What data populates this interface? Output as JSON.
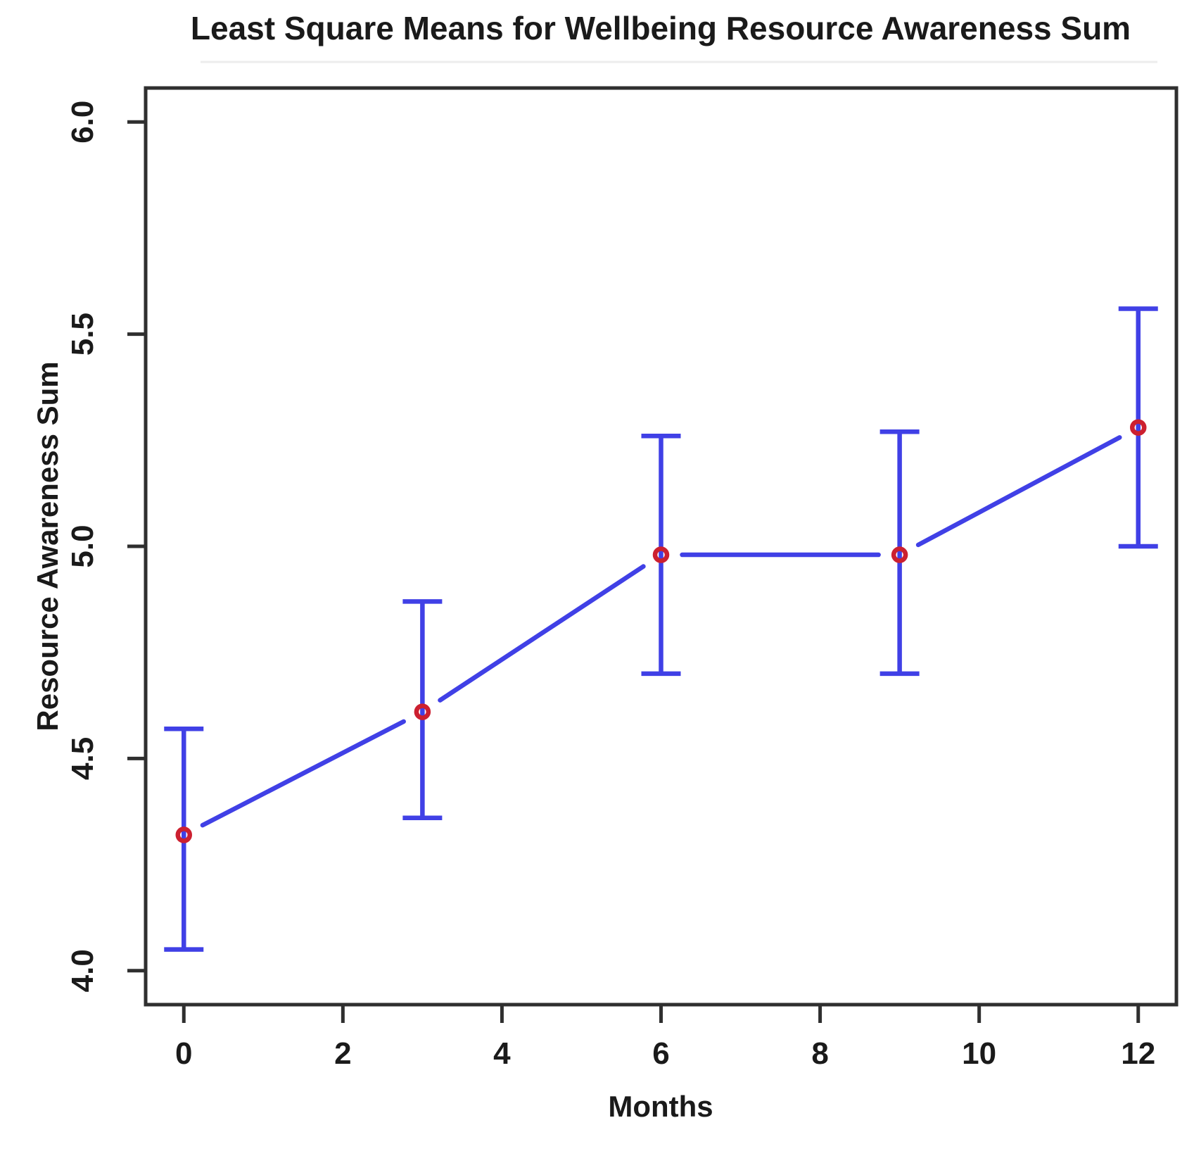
{
  "chart_data": {
    "type": "line",
    "title": "Least Square Means for Wellbeing Resource Awareness Sum",
    "xlabel": "Months",
    "ylabel": "Resource Awareness Sum",
    "x": [
      0,
      3,
      6,
      9,
      12
    ],
    "series": [
      {
        "name": "Least Square Mean",
        "values": [
          4.32,
          4.61,
          4.98,
          4.98,
          5.28
        ]
      }
    ],
    "error_low": [
      4.05,
      4.36,
      4.7,
      4.7,
      5.0
    ],
    "error_high": [
      4.57,
      4.87,
      5.26,
      5.27,
      5.56
    ],
    "xticks": [
      0,
      2,
      4,
      6,
      8,
      10,
      12
    ],
    "yticks": [
      4.0,
      4.5,
      5.0,
      5.5,
      6.0
    ],
    "xlim": [
      -0.48,
      12.48
    ],
    "ylim": [
      3.92,
      6.08
    ],
    "grid": false,
    "legend": "none",
    "marker": "open-circle",
    "colors": {
      "line": "#4040E6",
      "marker": "#CC2030",
      "axis": "#2F2F2F",
      "text": "#1A1A1A",
      "title_underline": "#ECECEC"
    }
  }
}
